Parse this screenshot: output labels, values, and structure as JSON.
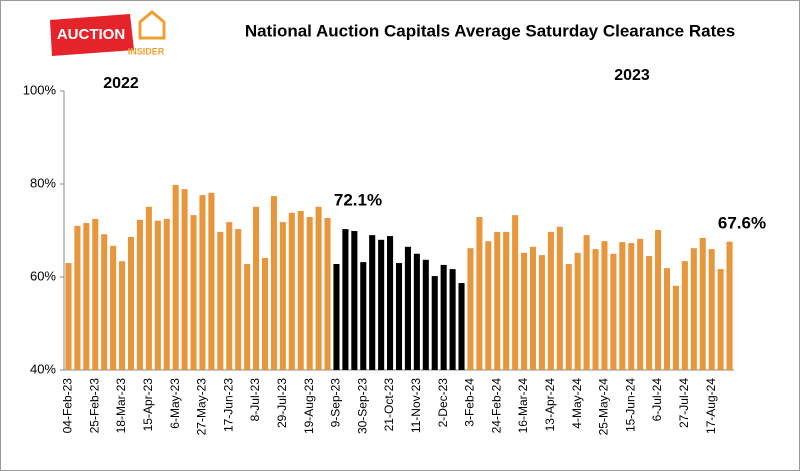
{
  "chart_data": {
    "type": "bar",
    "title": "National Auction Capitals Average Saturday Clearance Rates",
    "logo": [
      "AUCTION",
      "INSIDER"
    ],
    "year_labels": [
      "2022",
      "2023"
    ],
    "annotations": [
      "72.1%",
      "67.6%"
    ],
    "categories": [
      "04-Feb-23",
      null,
      null,
      "25-Feb-23",
      null,
      null,
      "18-Mar-23",
      null,
      null,
      "15-Apr-23",
      null,
      null,
      "6-May-23",
      null,
      null,
      "27-May-23",
      null,
      null,
      "17-Jun-23",
      null,
      null,
      "8-Jul-23",
      null,
      null,
      "29-Jul-23",
      null,
      null,
      "19-Aug-23",
      null,
      null,
      "9-Sep-23",
      null,
      null,
      "30-Sep-23",
      null,
      null,
      "21-Oct-23",
      null,
      null,
      "11-Nov-23",
      null,
      null,
      "2-Dec-23",
      null,
      null,
      "3-Feb-24",
      null,
      null,
      "24-Feb-24",
      null,
      null,
      "16-Mar-24",
      null,
      null,
      "13-Apr-24",
      null,
      null,
      "4-May-24",
      null,
      null,
      "25-May-24",
      null,
      null,
      "15-Jun-24",
      null,
      null,
      "6-Jul-24",
      null,
      null,
      "27-Jul-24",
      null,
      null,
      "17-Aug-24",
      null,
      null
    ],
    "values": [
      63,
      71,
      71.6,
      72.5,
      69.2,
      66.7,
      63.4,
      68.6,
      72.3,
      75.1,
      72.1,
      72.5,
      79.8,
      78.9,
      73.3,
      77.6,
      78.1,
      69.7,
      71.8,
      70.3,
      62.8,
      75.1,
      64.1,
      77.4,
      71.8,
      73.8,
      74.2,
      72.9,
      75.1,
      72.7,
      62.8,
      70.3,
      69.9,
      63.2,
      69,
      68,
      68.8,
      63,
      66.5,
      65,
      63.7,
      60.2,
      62.6,
      61.7,
      58.7,
      66.2,
      72.9,
      67.7,
      69.7,
      69.7,
      73.3,
      65.2,
      66.5,
      64.7,
      69.7,
      70.8,
      62.8,
      65.2,
      69,
      66,
      67.7,
      65,
      67.5,
      67.3,
      68.2,
      64.5,
      70.1,
      61.9,
      58.1,
      63.4,
      66.2,
      68.4,
      66,
      61.7,
      67.6
    ],
    "colors": [
      "#E8963C",
      "#E8963C",
      "#E8963C",
      "#E8963C",
      "#E8963C",
      "#E8963C",
      "#E8963C",
      "#E8963C",
      "#E8963C",
      "#E8963C",
      "#E8963C",
      "#E8963C",
      "#E8963C",
      "#E8963C",
      "#E8963C",
      "#E8963C",
      "#E8963C",
      "#E8963C",
      "#E8963C",
      "#E8963C",
      "#E8963C",
      "#E8963C",
      "#E8963C",
      "#E8963C",
      "#E8963C",
      "#E8963C",
      "#E8963C",
      "#E8963C",
      "#E8963C",
      "#E8963C",
      "#000000",
      "#000000",
      "#000000",
      "#000000",
      "#000000",
      "#000000",
      "#000000",
      "#000000",
      "#000000",
      "#000000",
      "#000000",
      "#000000",
      "#000000",
      "#000000",
      "#000000",
      "#E8963C",
      "#E8963C",
      "#E8963C",
      "#E8963C",
      "#E8963C",
      "#E8963C",
      "#E8963C",
      "#E8963C",
      "#E8963C",
      "#E8963C",
      "#E8963C",
      "#E8963C",
      "#E8963C",
      "#E8963C",
      "#E8963C",
      "#E8963C",
      "#E8963C",
      "#E8963C",
      "#E8963C",
      "#E8963C",
      "#E8963C",
      "#E8963C",
      "#E8963C",
      "#E8963C",
      "#E8963C",
      "#E8963C",
      "#E8963C",
      "#E8963C",
      "#E8963C",
      "#E8963C"
    ],
    "ylim": [
      40,
      100
    ],
    "yticks": [
      {
        "value": 40,
        "label": "40%"
      },
      {
        "value": 60,
        "label": "60%"
      },
      {
        "value": 80,
        "label": "80%"
      },
      {
        "value": 100,
        "label": "100%"
      }
    ],
    "grid": false
  }
}
